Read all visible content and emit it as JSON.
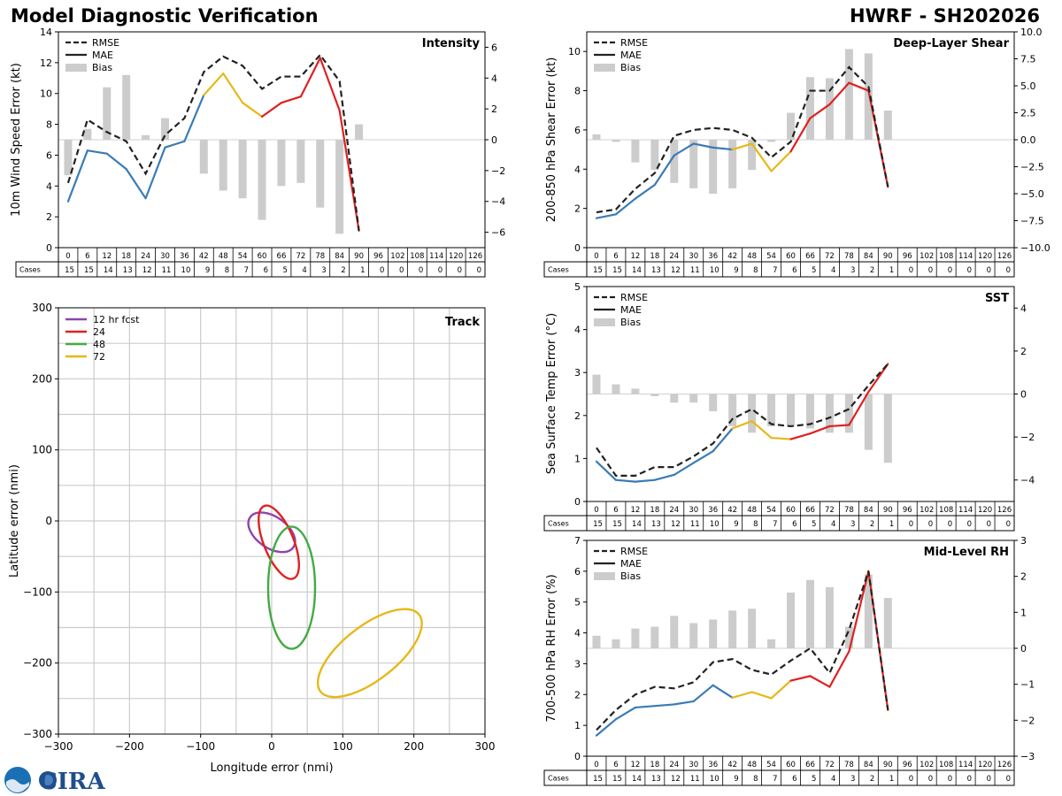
{
  "header": {
    "title_left": "Model Diagnostic Verification",
    "title_right": "HWRF - SH202026"
  },
  "logo": {
    "text": "CIRA",
    "noaa_color": "#1a6fb5",
    "cira_color": "#1f4e8c"
  },
  "colors": {
    "rmse": "#222222",
    "early": "#3a7bb5",
    "mid": "#e6b817",
    "late": "#dd2222",
    "bias": "#cccccc",
    "grid": "#cccccc",
    "zero": "#d0d0d0"
  },
  "table": {
    "hours": [
      0,
      6,
      12,
      18,
      24,
      30,
      36,
      42,
      48,
      54,
      60,
      66,
      72,
      78,
      84,
      90,
      96,
      102,
      108,
      114,
      120,
      126
    ],
    "cases": [
      15,
      15,
      14,
      13,
      12,
      11,
      10,
      9,
      8,
      7,
      6,
      5,
      4,
      3,
      2,
      1,
      0,
      0,
      0,
      0,
      0,
      0
    ],
    "cases_label": "Cases"
  },
  "legend": {
    "rmse": "RMSE",
    "mae": "MAE",
    "bias": "Bias"
  },
  "chart_data": [
    {
      "id": "intensity",
      "type": "line",
      "title": "Intensity",
      "ylabel": "10m Wind Speed Error (kt)",
      "ylim": [
        0,
        14
      ],
      "yticks": [
        0,
        2,
        4,
        6,
        8,
        10,
        12,
        14
      ],
      "y2lim": [
        -7,
        7
      ],
      "y2ticks": [
        "−6",
        "−4",
        "−2",
        "0",
        "2",
        "4",
        "6"
      ],
      "y2tick_values": [
        -6,
        -4,
        -2,
        0,
        2,
        4,
        6
      ],
      "rmse": [
        4.2,
        8.3,
        7.5,
        6.9,
        4.8,
        7.3,
        8.4,
        11.4,
        12.4,
        11.8,
        10.3,
        11.1,
        11.1,
        12.5,
        10.8,
        1.1
      ],
      "mae": [
        3.0,
        6.3,
        6.1,
        5.1,
        3.2,
        6.5,
        6.9,
        9.9,
        11.3,
        9.4,
        8.5,
        9.4,
        9.8,
        12.3,
        8.9,
        1.1
      ],
      "bias": [
        -2.3,
        0.7,
        3.4,
        4.2,
        0.3,
        1.4,
        0,
        -2.2,
        -3.3,
        -3.8,
        -5.2,
        -3.0,
        -2.8,
        -4.4,
        -6.1,
        1.0
      ]
    },
    {
      "id": "deep-layer-shear",
      "type": "line",
      "title": "Deep-Layer Shear",
      "ylabel": "200-850 hPa Shear Error (kt)",
      "ylim": [
        0,
        11
      ],
      "yticks": [
        0,
        2,
        4,
        6,
        8,
        10
      ],
      "y2lim": [
        -10,
        10
      ],
      "y2ticks": [
        "−10.0",
        "−7.5",
        "−5.0",
        "−2.5",
        "0.0",
        "2.5",
        "5.0",
        "7.5",
        "10.0"
      ],
      "y2tick_values": [
        -10,
        -7.5,
        -5,
        -2.5,
        0,
        2.5,
        5,
        7.5,
        10
      ],
      "rmse": [
        1.8,
        1.95,
        3.0,
        3.8,
        5.7,
        6.0,
        6.1,
        6.0,
        5.6,
        4.6,
        5.4,
        8.0,
        8.0,
        9.2,
        8.2,
        3.1
      ],
      "mae": [
        1.5,
        1.7,
        2.5,
        3.2,
        4.7,
        5.3,
        5.1,
        5.0,
        5.3,
        3.9,
        4.9,
        6.6,
        7.3,
        8.4,
        8.0,
        3.1
      ],
      "bias": [
        0.5,
        -0.2,
        -2.1,
        -2.8,
        -4.0,
        -4.5,
        -5.0,
        -4.5,
        -2.8,
        -0.2,
        2.5,
        5.8,
        5.7,
        8.4,
        8.0,
        2.7
      ]
    },
    {
      "id": "sst",
      "type": "line",
      "title": "SST",
      "ylabel": "Sea Surface Temp Error (°C)",
      "ylim": [
        0,
        5
      ],
      "yticks": [
        0,
        1,
        2,
        3,
        4,
        5
      ],
      "y2lim": [
        -5,
        5
      ],
      "y2ticks": [
        "−4",
        "−2",
        "0",
        "2",
        "4"
      ],
      "y2tick_values": [
        -4,
        -2,
        0,
        2,
        4
      ],
      "rmse": [
        1.25,
        0.6,
        0.6,
        0.8,
        0.8,
        1.05,
        1.35,
        1.92,
        2.15,
        1.8,
        1.75,
        1.8,
        1.95,
        2.15,
        2.7,
        3.2
      ],
      "mae": [
        0.93,
        0.5,
        0.46,
        0.5,
        0.62,
        0.9,
        1.17,
        1.7,
        1.87,
        1.48,
        1.45,
        1.58,
        1.75,
        1.78,
        2.55,
        3.2
      ],
      "bias": [
        0.9,
        0.45,
        0.25,
        -0.1,
        -0.4,
        -0.4,
        -0.8,
        -1.5,
        -1.8,
        -1.5,
        -1.5,
        -1.6,
        -1.8,
        -1.8,
        -2.6,
        -3.2
      ]
    },
    {
      "id": "mid-level-rh",
      "type": "line",
      "title": "Mid-Level RH",
      "ylabel": "700-500 hPa RH Error (%)",
      "ylim": [
        0,
        7
      ],
      "yticks": [
        0,
        1,
        2,
        3,
        4,
        5,
        6,
        7
      ],
      "y2lim": [
        -3,
        3
      ],
      "y2ticks": [
        "−3",
        "−2",
        "−1",
        "0",
        "1",
        "2",
        "3"
      ],
      "y2tick_values": [
        -3,
        -2,
        -1,
        0,
        1,
        2,
        3
      ],
      "rmse": [
        0.85,
        1.5,
        2.0,
        2.25,
        2.2,
        2.4,
        3.05,
        3.15,
        2.8,
        2.65,
        3.1,
        3.5,
        2.7,
        4.1,
        6.0,
        1.5
      ],
      "mae": [
        0.67,
        1.2,
        1.58,
        1.63,
        1.68,
        1.78,
        2.3,
        1.9,
        2.08,
        1.88,
        2.45,
        2.6,
        2.25,
        3.4,
        6.0,
        1.5
      ],
      "bias": [
        0.35,
        0.25,
        0.55,
        0.6,
        0.9,
        0.7,
        0.8,
        1.05,
        1.1,
        0.25,
        1.55,
        1.9,
        1.7,
        0.6,
        2.05,
        1.4
      ]
    },
    {
      "id": "track",
      "type": "ellipse",
      "title": "Track",
      "xlabel": "Longitude error (nmi)",
      "ylabel": "Latitude error (nmi)",
      "xlim": [
        -300,
        300
      ],
      "ylim": [
        -300,
        300
      ],
      "ticks": [
        -300,
        -200,
        -100,
        0,
        100,
        200,
        300
      ],
      "tick_labels": [
        "−300",
        "−200",
        "−100",
        "0",
        "100",
        "200",
        "300"
      ],
      "ellipses": [
        {
          "label": "12 hr fcst",
          "color": "#8e44ad",
          "cx": 0,
          "cy": -16,
          "rx": 37,
          "ry": 22,
          "angle": 35
        },
        {
          "label": "24",
          "color": "#dd2222",
          "cx": 10,
          "cy": -30,
          "rx": 55,
          "ry": 21,
          "angle": 68
        },
        {
          "label": "48",
          "color": "#44aa44",
          "cx": 28,
          "cy": -94,
          "rx": 86,
          "ry": 33,
          "angle": 90
        },
        {
          "label": "72",
          "color": "#e6b817",
          "cx": 138,
          "cy": -186,
          "rx": 88,
          "ry": 38,
          "angle": -38
        }
      ]
    }
  ]
}
